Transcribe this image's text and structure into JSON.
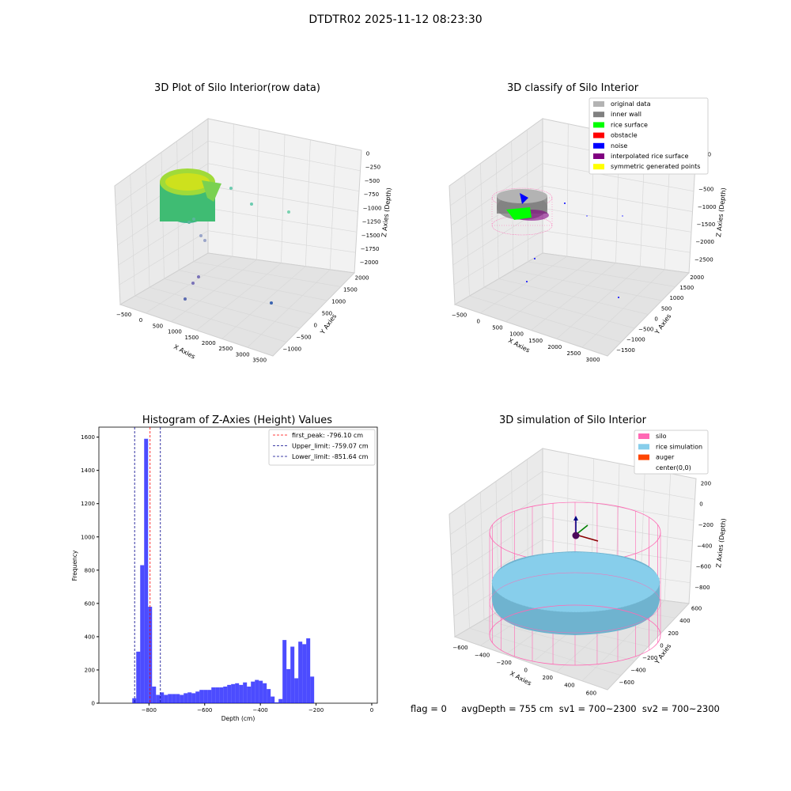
{
  "figure": {
    "title": "DTDTR02 2025-11-12 08:23:30",
    "footer": "flag = 0     avgDepth = 755 cm  sv1 = 700~2300  sv2 = 700~2300"
  },
  "panels": {
    "p1": {
      "title": "3D Plot of Silo Interior(row data)",
      "xlabel": "X Axies",
      "ylabel": "Y Axies",
      "zlabel": "Z Axies (Depth)",
      "xticks": [
        "−500",
        "0",
        "500",
        "1000",
        "1500",
        "2000",
        "2500",
        "3000",
        "3500"
      ],
      "yticks": [
        "2000",
        "1500",
        "1000",
        "500",
        "0",
        "−500",
        "−1000"
      ],
      "zticks": [
        "0",
        "−250",
        "−500",
        "−750",
        "−1000",
        "−1250",
        "−1500",
        "−1750",
        "−2000"
      ]
    },
    "p2": {
      "title": "3D classify of Silo Interior",
      "xlabel": "X Axies",
      "ylabel": "Y Axies",
      "zlabel": "Z Axies (Depth)",
      "xticks": [
        "−500",
        "0",
        "500",
        "1000",
        "1500",
        "2000",
        "2500",
        "3000"
      ],
      "yticks": [
        "2000",
        "1500",
        "1000",
        "500",
        "0",
        "−500",
        "−1000",
        "−1500"
      ],
      "zticks": [
        "500",
        "0",
        "−500",
        "−1000",
        "−1500",
        "−2000",
        "−2500"
      ],
      "legend": [
        {
          "label": "original data",
          "color": "#b3b3b3"
        },
        {
          "label": "inner wall",
          "color": "#808080"
        },
        {
          "label": "rice surface",
          "color": "#00ff00"
        },
        {
          "label": "obstacle",
          "color": "#ff0000"
        },
        {
          "label": "noise",
          "color": "#0000ff"
        },
        {
          "label": "interpolated rice surface",
          "color": "#800080"
        },
        {
          "label": "symmetric generated points",
          "color": "#ffff00"
        }
      ]
    },
    "p4": {
      "title": "3D simulation of Silo Interior",
      "xlabel": "X Axies",
      "ylabel": "Y Axies",
      "zlabel": "Z Axies (Depth)",
      "xticks": [
        "−600",
        "−400",
        "−200",
        "0",
        "200",
        "400",
        "600"
      ],
      "yticks": [
        "600",
        "400",
        "200",
        "0",
        "−200",
        "−400",
        "−600"
      ],
      "zticks": [
        "200",
        "0",
        "−200",
        "−400",
        "−600",
        "−800"
      ],
      "legend": [
        {
          "label": "silo",
          "color": "#ff69b4"
        },
        {
          "label": "rice simulation",
          "color": "#87ceeb"
        },
        {
          "label": "auger",
          "color": "#ff4500"
        },
        {
          "label": "center(0,0)",
          "color": ""
        }
      ]
    }
  },
  "chart_data": [
    {
      "type": "bar",
      "title": "Histogram of Z-Axies (Height) Values",
      "xlabel": "Depth (cm)",
      "ylabel": "Frequency",
      "xlim": [
        -980,
        20
      ],
      "ylim": [
        0,
        1660
      ],
      "xticks": [
        -800,
        -600,
        -400,
        -200,
        0
      ],
      "xtick_labels": [
        "−800",
        "−600",
        "−400",
        "−200",
        "0"
      ],
      "yticks": [
        0,
        200,
        400,
        600,
        800,
        1000,
        1200,
        1400,
        1600
      ],
      "bin_width": 14.2,
      "bin_start": -860,
      "values": [
        30,
        310,
        830,
        1590,
        580,
        100,
        50,
        65,
        50,
        55,
        55,
        55,
        50,
        60,
        65,
        60,
        70,
        80,
        80,
        80,
        95,
        95,
        95,
        100,
        110,
        115,
        120,
        110,
        125,
        100,
        130,
        140,
        135,
        120,
        85,
        40,
        5,
        25,
        380,
        205,
        340,
        150,
        370,
        355,
        390,
        160
      ],
      "color": "#0000ff",
      "lines": [
        {
          "label": "first_peak: -796.10 cm",
          "x": -796.1,
          "color": "#ff0000"
        },
        {
          "label": "Upper_limit: -759.07 cm",
          "x": -759.07,
          "color": "#00008b"
        },
        {
          "label": "Lower_limit: -851.64 cm",
          "x": -851.64,
          "color": "#00008b"
        }
      ],
      "legend_position": "upper right"
    }
  ]
}
